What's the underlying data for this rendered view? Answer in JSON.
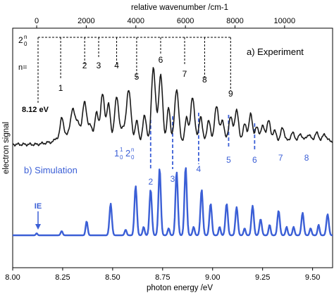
{
  "chart_data": {
    "type": "line",
    "xlabel": "photon energy /eV",
    "ylabel": "electron signal",
    "xlim": [
      8.0,
      9.6
    ],
    "x_ticks": [
      "8.00",
      "8.25",
      "8.50",
      "8.75",
      "9.00",
      "9.25",
      "9.50"
    ],
    "top_axis": {
      "label": "relative wavenumber /cm-1",
      "origin_ev": 8.12,
      "ticks": [
        "0",
        "2000",
        "4000",
        "6000",
        "8000",
        "10000"
      ]
    },
    "annotations": {
      "experiment_label": "a) Experiment",
      "simulation_label": "b) Simulation",
      "onset_label": "8.12 eV",
      "ie_label": "IE",
      "ie_energy": 8.12,
      "progression_main": "2",
      "progression_main_sub": "0",
      "progression_main_sup": "n",
      "n_label": "n=",
      "main_n": [
        "1",
        "2",
        "3",
        "4",
        "5",
        "6",
        "7",
        "8",
        "9"
      ],
      "main_energy": [
        8.24,
        8.36,
        8.43,
        8.52,
        8.62,
        8.74,
        8.86,
        8.96,
        9.09
      ],
      "progression_combo_a": "1",
      "progression_combo_a_sub": "0",
      "progression_combo_a_sup": "1",
      "progression_combo_b": "2",
      "progression_combo_b_sub": "0",
      "progression_combo_b_sup": "n",
      "combo_n": [
        "2",
        "3",
        "4",
        "5",
        "6",
        "7",
        "8"
      ],
      "combo_energy": [
        8.69,
        8.8,
        8.93,
        9.08,
        9.21,
        9.34,
        9.47
      ]
    },
    "series": [
      {
        "name": "a) Experiment",
        "color": "#1a1a1a",
        "baseline": 0.05,
        "x": [
          8.0,
          8.22,
          8.245,
          8.255,
          8.28,
          8.3,
          8.315,
          8.33,
          8.36,
          8.39,
          8.42,
          8.45,
          8.48,
          8.52,
          8.55,
          8.58,
          8.62,
          8.66,
          8.7,
          8.71,
          8.74,
          8.78,
          8.82,
          8.87,
          8.9,
          8.94,
          8.98,
          9.02,
          9.05,
          9.09,
          9.12,
          9.16,
          9.19,
          9.22,
          9.25,
          9.28,
          9.31,
          9.35,
          9.4,
          9.44,
          9.48,
          9.52,
          9.56
        ],
        "y": [
          0.0,
          0.05,
          0.3,
          0.1,
          0.12,
          0.42,
          0.15,
          0.2,
          0.58,
          0.22,
          0.42,
          0.7,
          0.55,
          0.68,
          0.2,
          0.78,
          0.3,
          0.38,
          0.75,
          0.55,
          0.98,
          0.5,
          0.78,
          0.35,
          0.65,
          0.38,
          0.3,
          0.52,
          0.3,
          0.38,
          0.48,
          0.25,
          0.4,
          0.2,
          0.22,
          0.3,
          0.15,
          0.2,
          0.12,
          0.1,
          0.1,
          0.12,
          0.1
        ],
        "width": [
          0.02,
          0.008,
          0.008,
          0.01,
          0.008,
          0.01,
          0.01,
          0.01,
          0.011,
          0.01,
          0.009,
          0.01,
          0.009,
          0.01,
          0.009,
          0.011,
          0.008,
          0.009,
          0.008,
          0.009,
          0.01,
          0.008,
          0.01,
          0.008,
          0.01,
          0.008,
          0.009,
          0.01,
          0.009,
          0.009,
          0.009,
          0.009,
          0.009,
          0.009,
          0.01,
          0.009,
          0.009,
          0.009,
          0.01,
          0.01,
          0.01,
          0.01,
          0.01
        ]
      },
      {
        "name": "b) Simulation",
        "color": "#3b5fd6",
        "baseline": 0.02,
        "x": [
          8.12,
          8.245,
          8.37,
          8.49,
          8.565,
          8.615,
          8.655,
          8.69,
          8.735,
          8.78,
          8.82,
          8.865,
          8.905,
          8.945,
          8.99,
          9.035,
          9.07,
          9.12,
          9.16,
          9.2,
          9.24,
          9.285,
          9.33,
          9.37,
          9.405,
          9.45,
          9.49,
          9.53,
          9.575
        ],
        "y": [
          0.03,
          0.06,
          0.2,
          0.45,
          0.08,
          0.7,
          0.12,
          0.65,
          0.95,
          0.1,
          0.9,
          0.97,
          0.12,
          0.65,
          0.45,
          0.12,
          0.45,
          0.4,
          0.1,
          0.42,
          0.23,
          0.15,
          0.35,
          0.12,
          0.12,
          0.32,
          0.1,
          0.15,
          0.3
        ],
        "width": [
          0.004,
          0.005,
          0.005,
          0.006,
          0.005,
          0.006,
          0.005,
          0.006,
          0.006,
          0.005,
          0.006,
          0.006,
          0.005,
          0.006,
          0.006,
          0.005,
          0.006,
          0.006,
          0.005,
          0.006,
          0.006,
          0.005,
          0.006,
          0.005,
          0.005,
          0.006,
          0.005,
          0.005,
          0.006
        ]
      }
    ]
  }
}
